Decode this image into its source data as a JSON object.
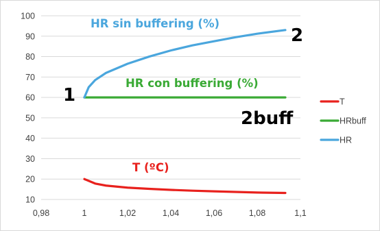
{
  "chart_data": {
    "type": "line",
    "title": "",
    "xlabel": "",
    "ylabel": "",
    "xlim": [
      0.98,
      1.1
    ],
    "ylim": [
      10,
      100
    ],
    "x_ticks": [
      "0,98",
      "1",
      "1,02",
      "1,04",
      "1,06",
      "1,08",
      "1,1"
    ],
    "y_ticks": [
      "10",
      "20",
      "30",
      "40",
      "50",
      "60",
      "70",
      "80",
      "90",
      "100"
    ],
    "grid": "horizontal",
    "legend_position": "right",
    "series": [
      {
        "name": "T",
        "color": "#e8211d",
        "x": [
          1.0,
          1.005,
          1.01,
          1.02,
          1.03,
          1.04,
          1.05,
          1.06,
          1.07,
          1.08,
          1.093
        ],
        "y": [
          20.0,
          17.8,
          16.8,
          15.8,
          15.2,
          14.7,
          14.3,
          14.0,
          13.7,
          13.4,
          13.2
        ]
      },
      {
        "name": "HRbuff",
        "color": "#3aaa35",
        "x": [
          1.0,
          1.093
        ],
        "y": [
          60,
          60
        ]
      },
      {
        "name": "HR",
        "color": "#4aa6dd",
        "x": [
          1.0,
          1.002,
          1.005,
          1.01,
          1.02,
          1.03,
          1.04,
          1.05,
          1.06,
          1.07,
          1.08,
          1.093
        ],
        "y": [
          60.0,
          65.0,
          68.5,
          72.0,
          76.5,
          80.0,
          83.0,
          85.5,
          87.5,
          89.5,
          91.2,
          93.0
        ]
      }
    ],
    "annotations": [
      {
        "text": "HR sin buffering (%)",
        "color": "#4aa6dd"
      },
      {
        "text": "HR con buffering (%)",
        "color": "#3aaa35"
      },
      {
        "text": "T (ºC)",
        "color": "#e8211d"
      },
      {
        "text": "1",
        "color": "#000000"
      },
      {
        "text": "2",
        "color": "#000000"
      },
      {
        "text": "2buff",
        "color": "#000000"
      }
    ]
  }
}
